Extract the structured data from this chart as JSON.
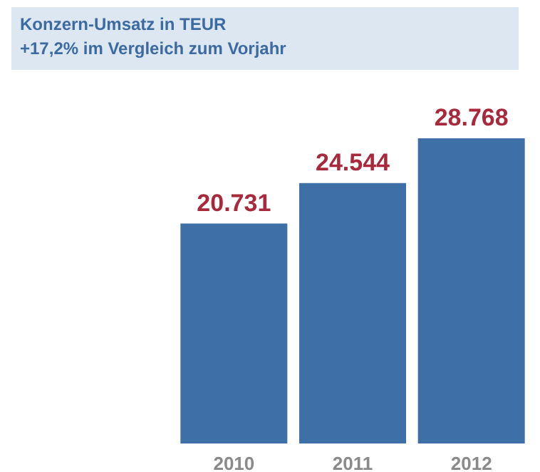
{
  "chart_data": {
    "type": "bar",
    "title": "Konzern-Umsatz in TEUR",
    "subtitle": "+17,2% im Vergleich zum Vorjahr",
    "categories": [
      "2010",
      "2011",
      "2012"
    ],
    "values": [
      20731,
      24544,
      28768
    ],
    "value_labels": [
      "20.731",
      "24.544",
      "28.768"
    ],
    "color": "#3e6fa6",
    "tick_labels": "x"
  }
}
